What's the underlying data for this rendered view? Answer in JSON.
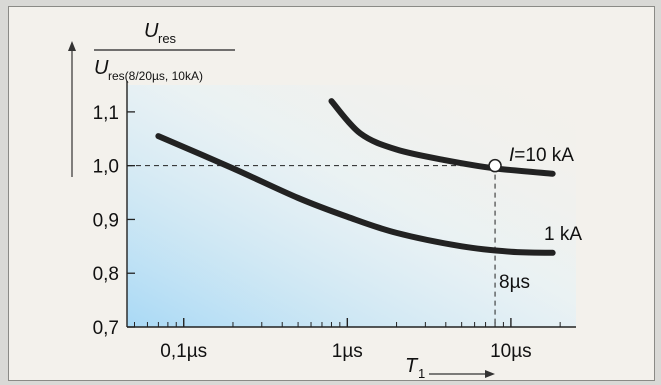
{
  "chart_data": {
    "type": "line",
    "ylabel_numerator": {
      "base": "U",
      "sub": "res"
    },
    "ylabel_denominator": {
      "base": "U",
      "sub": "res(8/20µs, 10kA)"
    },
    "xlabel": {
      "base": "T",
      "sub": "1"
    },
    "x_scale": "log",
    "xlim": [
      0.045,
      25
    ],
    "ylim": [
      0.7,
      1.15
    ],
    "x_ticks": [
      0.1,
      1,
      10
    ],
    "x_tick_labels": [
      "0,1µs",
      "1µs",
      "10µs"
    ],
    "y_ticks": [
      0.7,
      0.8,
      0.9,
      1.0,
      1.1
    ],
    "y_tick_labels": [
      "0,7",
      "0,8",
      "0,9",
      "1,0",
      "1,1"
    ],
    "series": [
      {
        "name": "I=10 kA",
        "label_prefix": "I",
        "label_suffix": "=10 kA",
        "points": [
          [
            0.8,
            1.12
          ],
          [
            1.2,
            1.06
          ],
          [
            2,
            1.03
          ],
          [
            4,
            1.01
          ],
          [
            8,
            0.995
          ],
          [
            18,
            0.985
          ]
        ]
      },
      {
        "name": "1 kA",
        "label_prefix": "",
        "label_suffix": "1 kA",
        "points": [
          [
            0.07,
            1.055
          ],
          [
            0.2,
            0.995
          ],
          [
            0.5,
            0.94
          ],
          [
            1,
            0.905
          ],
          [
            2,
            0.875
          ],
          [
            5,
            0.85
          ],
          [
            10,
            0.84
          ],
          [
            18,
            0.838
          ]
        ]
      }
    ],
    "reference_point": {
      "x": 8,
      "y": 1.0
    },
    "reference_label": "8µs",
    "colors": {
      "curve": "#222222",
      "gradient": "#a9d9f5",
      "background": "#f3f1ec"
    }
  }
}
